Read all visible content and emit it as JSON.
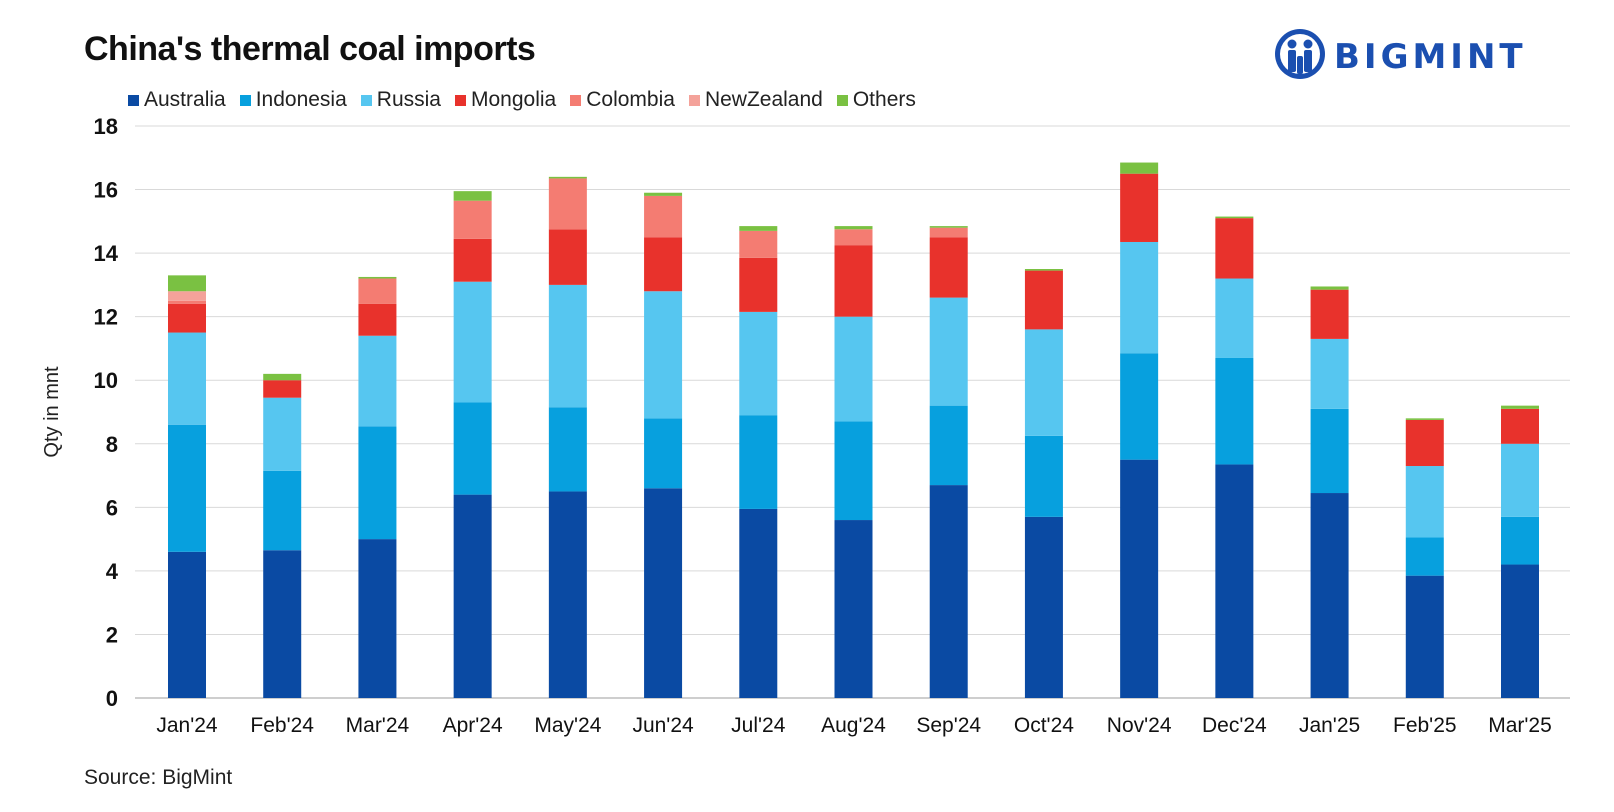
{
  "title": "China's thermal coal imports",
  "source": "Source: BigMint",
  "brand": {
    "name": "BIGMINT",
    "color": "#1b4fb0"
  },
  "chart_data": {
    "type": "bar",
    "stacked": true,
    "title": "China's thermal coal imports",
    "xlabel": "",
    "ylabel": "Qty in mnt",
    "ylim": [
      0,
      18
    ],
    "yticks": [
      0,
      2,
      4,
      6,
      8,
      10,
      12,
      14,
      16,
      18
    ],
    "grid": true,
    "legend_position": "top-left",
    "categories": [
      "Jan'24",
      "Feb'24",
      "Mar'24",
      "Apr'24",
      "May'24",
      "Jun'24",
      "Jul'24",
      "Aug'24",
      "Sep'24",
      "Oct'24",
      "Nov'24",
      "Dec'24",
      "Jan'25",
      "Feb'25",
      "Mar'25"
    ],
    "series": [
      {
        "name": "Australia",
        "color": "#0a4aa3",
        "values": [
          4.6,
          4.65,
          5.0,
          6.4,
          6.5,
          6.6,
          5.95,
          5.6,
          6.7,
          5.7,
          7.5,
          7.35,
          6.45,
          3.85,
          4.2
        ]
      },
      {
        "name": "Indonesia",
        "color": "#07a0de",
        "values": [
          4.0,
          2.5,
          3.55,
          2.9,
          2.65,
          2.2,
          2.95,
          3.1,
          2.5,
          2.55,
          3.35,
          3.35,
          2.65,
          1.2,
          1.5
        ]
      },
      {
        "name": "Russia",
        "color": "#56c6f0",
        "values": [
          2.9,
          2.3,
          2.85,
          3.8,
          3.85,
          4.0,
          3.25,
          3.3,
          3.4,
          3.35,
          3.5,
          2.5,
          2.2,
          2.25,
          2.3
        ]
      },
      {
        "name": "Mongolia",
        "color": "#e8322c",
        "values": [
          0.9,
          0.55,
          1.0,
          1.35,
          1.75,
          1.7,
          1.7,
          2.25,
          1.9,
          1.85,
          2.15,
          1.9,
          1.55,
          1.45,
          1.1
        ]
      },
      {
        "name": "Colombia",
        "color": "#f47c72",
        "values": [
          0.1,
          0.0,
          0.8,
          1.2,
          1.6,
          1.3,
          0.85,
          0.5,
          0.3,
          0.0,
          0.0,
          0.0,
          0.0,
          0.0,
          0.0
        ]
      },
      {
        "name": "NewZealand",
        "color": "#f4a29a",
        "values": [
          0.3,
          0.0,
          0.0,
          0.0,
          0.0,
          0.0,
          0.0,
          0.0,
          0.0,
          0.0,
          0.0,
          0.0,
          0.0,
          0.0,
          0.0
        ]
      },
      {
        "name": "Others",
        "color": "#7ac142",
        "values": [
          0.5,
          0.2,
          0.05,
          0.3,
          0.05,
          0.1,
          0.15,
          0.1,
          0.05,
          0.05,
          0.35,
          0.05,
          0.1,
          0.05,
          0.1
        ]
      }
    ]
  }
}
